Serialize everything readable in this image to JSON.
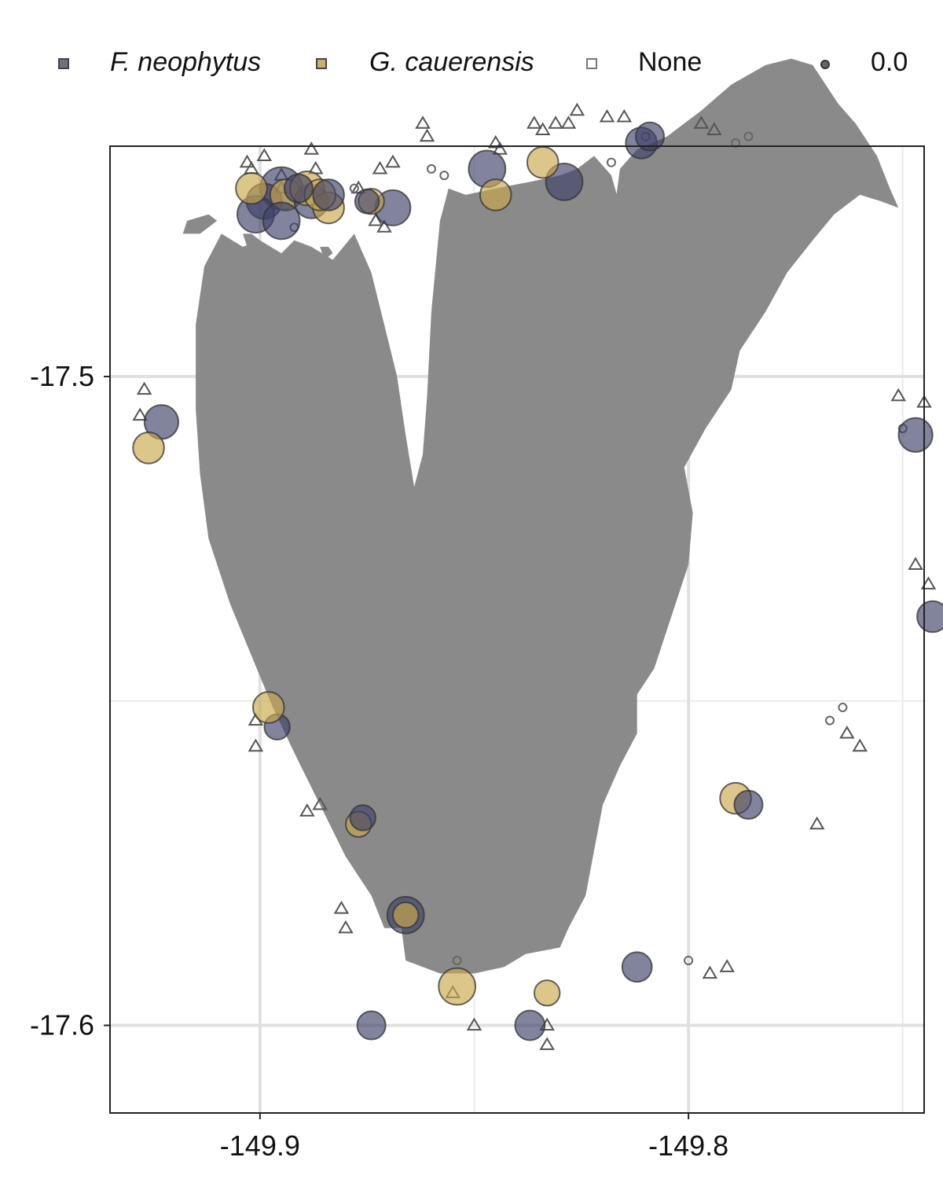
{
  "legend": {
    "items": [
      {
        "label": "F. neophytus",
        "italic": true,
        "color": "#3f4168"
      },
      {
        "label": "G. cauerensis",
        "italic": true,
        "color": "#c9a84b"
      },
      {
        "label": "None",
        "italic": false,
        "color": "#ffffff"
      }
    ],
    "size_label": "0.0"
  },
  "chart_data": {
    "type": "map",
    "xlim": [
      -149.935,
      -149.745
    ],
    "ylim": [
      -17.6135,
      -17.4645
    ],
    "x_ticks": [
      -149.9,
      -149.8
    ],
    "y_ticks": [
      -17.5,
      -17.6
    ],
    "x_tick_labels": [
      "-149.9",
      "-149.8"
    ],
    "y_tick_labels": [
      "-17.5",
      "-17.6"
    ],
    "minor_x_ticks": [
      -149.85,
      -149.75
    ],
    "minor_y_ticks": [
      -17.55
    ],
    "grid": true,
    "legend_position": "top",
    "land_color": "#8a8a8a",
    "colors": {
      "F. neophytus": "#3f4168",
      "G. cauerensis": "#c9a84b",
      "None": "#555555"
    },
    "island_outline": [
      [
        -149.878,
        -17.478
      ],
      [
        -149.883,
        -17.482
      ],
      [
        -149.888,
        -17.48
      ],
      [
        -149.892,
        -17.479
      ],
      [
        -149.895,
        -17.481
      ],
      [
        -149.9,
        -17.479
      ],
      [
        -149.904,
        -17.48
      ],
      [
        -149.909,
        -17.478
      ],
      [
        -149.913,
        -17.483
      ],
      [
        -149.915,
        -17.492
      ],
      [
        -149.915,
        -17.505
      ],
      [
        -149.914,
        -17.515
      ],
      [
        -149.912,
        -17.525
      ],
      [
        -149.907,
        -17.535
      ],
      [
        -149.902,
        -17.543
      ],
      [
        -149.897,
        -17.551
      ],
      [
        -149.892,
        -17.558
      ],
      [
        -149.886,
        -17.566
      ],
      [
        -149.88,
        -17.574
      ],
      [
        -149.874,
        -17.58
      ],
      [
        -149.871,
        -17.585
      ],
      [
        -149.867,
        -17.585
      ],
      [
        -149.866,
        -17.59
      ],
      [
        -149.858,
        -17.592
      ],
      [
        -149.85,
        -17.592
      ],
      [
        -149.843,
        -17.591
      ],
      [
        -149.838,
        -17.589
      ],
      [
        -149.83,
        -17.588
      ],
      [
        -149.828,
        -17.585
      ],
      [
        -149.824,
        -17.58
      ],
      [
        -149.822,
        -17.573
      ],
      [
        -149.82,
        -17.566
      ],
      [
        -149.816,
        -17.56
      ],
      [
        -149.812,
        -17.555
      ],
      [
        -149.812,
        -17.549
      ],
      [
        -149.808,
        -17.545
      ],
      [
        -149.804,
        -17.537
      ],
      [
        -149.8,
        -17.529
      ],
      [
        -149.799,
        -17.521
      ],
      [
        -149.801,
        -17.514
      ],
      [
        -149.796,
        -17.508
      ],
      [
        -149.79,
        -17.502
      ],
      [
        -149.788,
        -17.496
      ],
      [
        -149.782,
        -17.49
      ],
      [
        -149.777,
        -17.484
      ],
      [
        -149.771,
        -17.479
      ],
      [
        -149.766,
        -17.475
      ],
      [
        -149.76,
        -17.472
      ],
      [
        -149.755,
        -17.473
      ],
      [
        -149.751,
        -17.474
      ],
      [
        -149.753,
        -17.471
      ],
      [
        -149.756,
        -17.466
      ],
      [
        -149.761,
        -17.461
      ],
      [
        -149.765,
        -17.458
      ],
      [
        -149.768,
        -17.455
      ],
      [
        -149.771,
        -17.452
      ],
      [
        -149.776,
        -17.451
      ],
      [
        -149.782,
        -17.452
      ],
      [
        -149.79,
        -17.455
      ],
      [
        -149.797,
        -17.459
      ],
      [
        -149.805,
        -17.463
      ],
      [
        -149.812,
        -17.465
      ],
      [
        -149.816,
        -17.468
      ],
      [
        -149.817,
        -17.473
      ],
      [
        -149.818,
        -17.483
      ],
      [
        -149.817,
        -17.496
      ],
      [
        -149.815,
        -17.506
      ],
      [
        -149.813,
        -17.511
      ],
      [
        -149.811,
        -17.509
      ],
      [
        -149.812,
        -17.502
      ],
      [
        -149.814,
        -17.488
      ],
      [
        -149.815,
        -17.476
      ],
      [
        -149.818,
        -17.469
      ],
      [
        -149.822,
        -17.466
      ],
      [
        -149.826,
        -17.468
      ],
      [
        -149.83,
        -17.469
      ],
      [
        -149.837,
        -17.47
      ],
      [
        -149.845,
        -17.471
      ],
      [
        -149.852,
        -17.472
      ],
      [
        -149.856,
        -17.471
      ],
      [
        -149.858,
        -17.476
      ],
      [
        -149.86,
        -17.49
      ],
      [
        -149.861,
        -17.503
      ],
      [
        -149.862,
        -17.512
      ],
      [
        -149.864,
        -17.517
      ],
      [
        -149.866,
        -17.509
      ],
      [
        -149.868,
        -17.5
      ],
      [
        -149.871,
        -17.492
      ],
      [
        -149.874,
        -17.484
      ]
    ],
    "islets": [
      [
        [
          -149.904,
          -17.478
        ],
        [
          -149.902,
          -17.478
        ],
        [
          -149.9,
          -17.479
        ],
        [
          -149.903,
          -17.48
        ]
      ],
      [
        [
          -149.886,
          -17.48
        ],
        [
          -149.884,
          -17.48
        ],
        [
          -149.883,
          -17.481
        ],
        [
          -149.885,
          -17.482
        ]
      ],
      [
        [
          -149.917,
          -17.476
        ],
        [
          -149.912,
          -17.475
        ],
        [
          -149.91,
          -17.476
        ],
        [
          -149.914,
          -17.478
        ],
        [
          -149.918,
          -17.478
        ]
      ]
    ],
    "occurrences": [
      {
        "species": "F. neophytus",
        "x": -149.895,
        "y": -17.471,
        "size": 3.0
      },
      {
        "species": "F. neophytus",
        "x": -149.899,
        "y": -17.473,
        "size": 2.5
      },
      {
        "species": "F. neophytus",
        "x": -149.901,
        "y": -17.475,
        "size": 2.6
      },
      {
        "species": "G. cauerensis",
        "x": -149.902,
        "y": -17.471,
        "size": 2.2
      },
      {
        "species": "G. cauerensis",
        "x": -149.894,
        "y": -17.472,
        "size": 2.2
      },
      {
        "species": "F. neophytus",
        "x": -149.888,
        "y": -17.473,
        "size": 2.4
      },
      {
        "species": "G. cauerensis",
        "x": -149.889,
        "y": -17.471,
        "size": 2.4
      },
      {
        "species": "G. cauerensis",
        "x": -149.884,
        "y": -17.474,
        "size": 2.2
      },
      {
        "species": "G. cauerensis",
        "x": -149.886,
        "y": -17.472,
        "size": 2.2
      },
      {
        "species": "F. neophytus",
        "x": -149.884,
        "y": -17.472,
        "size": 2.2
      },
      {
        "species": "F. neophytus",
        "x": -149.895,
        "y": -17.476,
        "size": 2.6
      },
      {
        "species": "F. neophytus",
        "x": -149.891,
        "y": -17.471,
        "size": 2.0
      },
      {
        "species": "F. neophytus",
        "x": -149.869,
        "y": -17.474,
        "size": 2.5
      },
      {
        "species": "G. cauerensis",
        "x": -149.874,
        "y": -17.473,
        "size": 1.8
      },
      {
        "species": "F. neophytus",
        "x": -149.875,
        "y": -17.473,
        "size": 1.7
      },
      {
        "species": "F. neophytus",
        "x": -149.847,
        "y": -17.468,
        "size": 2.6
      },
      {
        "species": "G. cauerensis",
        "x": -149.845,
        "y": -17.472,
        "size": 2.2
      },
      {
        "species": "F. neophytus",
        "x": -149.829,
        "y": -17.47,
        "size": 2.6
      },
      {
        "species": "G. cauerensis",
        "x": -149.834,
        "y": -17.467,
        "size": 2.2
      },
      {
        "species": "F. neophytus",
        "x": -149.811,
        "y": -17.464,
        "size": 2.2
      },
      {
        "species": "F. neophytus",
        "x": -149.809,
        "y": -17.463,
        "size": 2.0
      },
      {
        "species": "F. neophytus",
        "x": -149.923,
        "y": -17.507,
        "size": 2.4
      },
      {
        "species": "G. cauerensis",
        "x": -149.926,
        "y": -17.511,
        "size": 2.2
      },
      {
        "species": "F. neophytus",
        "x": -149.747,
        "y": -17.509,
        "size": 2.4
      },
      {
        "species": "F. neophytus",
        "x": -149.743,
        "y": -17.537,
        "size": 2.2
      },
      {
        "species": "F. neophytus",
        "x": -149.896,
        "y": -17.554,
        "size": 1.8
      },
      {
        "species": "G. cauerensis",
        "x": -149.898,
        "y": -17.551,
        "size": 2.2
      },
      {
        "species": "F. neophytus",
        "x": -149.874,
        "y": -17.6,
        "size": 2.0
      },
      {
        "species": "G. cauerensis",
        "x": -149.877,
        "y": -17.569,
        "size": 1.8
      },
      {
        "species": "F. neophytus",
        "x": -149.876,
        "y": -17.568,
        "size": 1.8
      },
      {
        "species": "F. neophytus",
        "x": -149.866,
        "y": -17.583,
        "size": 2.6
      },
      {
        "species": "G. cauerensis",
        "x": -149.866,
        "y": -17.583,
        "size": 1.8
      },
      {
        "species": "G. cauerensis",
        "x": -149.854,
        "y": -17.594,
        "size": 2.6
      },
      {
        "species": "G. cauerensis",
        "x": -149.833,
        "y": -17.595,
        "size": 1.8
      },
      {
        "species": "F. neophytus",
        "x": -149.837,
        "y": -17.6,
        "size": 2.1
      },
      {
        "species": "F. neophytus",
        "x": -149.812,
        "y": -17.591,
        "size": 2.1
      },
      {
        "species": "G. cauerensis",
        "x": -149.789,
        "y": -17.565,
        "size": 2.2
      },
      {
        "species": "F. neophytus",
        "x": -149.786,
        "y": -17.566,
        "size": 2.0
      }
    ],
    "zero_points": [
      {
        "x": -149.892,
        "y": -17.477
      },
      {
        "x": -149.878,
        "y": -17.471
      },
      {
        "x": -149.86,
        "y": -17.468
      },
      {
        "x": -149.857,
        "y": -17.469
      },
      {
        "x": -149.818,
        "y": -17.467
      },
      {
        "x": -149.81,
        "y": -17.463
      },
      {
        "x": -149.789,
        "y": -17.464
      },
      {
        "x": -149.786,
        "y": -17.463
      },
      {
        "x": -149.75,
        "y": -17.508
      },
      {
        "x": -149.739,
        "y": -17.534
      },
      {
        "x": -149.764,
        "y": -17.551
      },
      {
        "x": -149.767,
        "y": -17.553
      },
      {
        "x": -149.854,
        "y": -17.59
      },
      {
        "x": -149.8,
        "y": -17.59
      }
    ],
    "none_points": [
      {
        "x": -149.927,
        "y": -17.502
      },
      {
        "x": -149.928,
        "y": -17.506
      },
      {
        "x": -149.903,
        "y": -17.467
      },
      {
        "x": -149.899,
        "y": -17.466
      },
      {
        "x": -149.895,
        "y": -17.469
      },
      {
        "x": -149.902,
        "y": -17.468
      },
      {
        "x": -149.895,
        "y": -17.471
      },
      {
        "x": -149.888,
        "y": -17.465
      },
      {
        "x": -149.887,
        "y": -17.468
      },
      {
        "x": -149.877,
        "y": -17.471
      },
      {
        "x": -149.872,
        "y": -17.468
      },
      {
        "x": -149.869,
        "y": -17.467
      },
      {
        "x": -149.873,
        "y": -17.476
      },
      {
        "x": -149.871,
        "y": -17.477
      },
      {
        "x": -149.862,
        "y": -17.461
      },
      {
        "x": -149.861,
        "y": -17.463
      },
      {
        "x": -149.845,
        "y": -17.464
      },
      {
        "x": -149.844,
        "y": -17.465
      },
      {
        "x": -149.836,
        "y": -17.461
      },
      {
        "x": -149.834,
        "y": -17.462
      },
      {
        "x": -149.831,
        "y": -17.461
      },
      {
        "x": -149.828,
        "y": -17.461
      },
      {
        "x": -149.826,
        "y": -17.459
      },
      {
        "x": -149.819,
        "y": -17.46
      },
      {
        "x": -149.815,
        "y": -17.46
      },
      {
        "x": -149.797,
        "y": -17.461
      },
      {
        "x": -149.794,
        "y": -17.462
      },
      {
        "x": -149.751,
        "y": -17.503
      },
      {
        "x": -149.745,
        "y": -17.504
      },
      {
        "x": -149.747,
        "y": -17.529
      },
      {
        "x": -149.744,
        "y": -17.532
      },
      {
        "x": -149.763,
        "y": -17.555
      },
      {
        "x": -149.76,
        "y": -17.557
      },
      {
        "x": -149.77,
        "y": -17.569
      },
      {
        "x": -149.901,
        "y": -17.553
      },
      {
        "x": -149.901,
        "y": -17.557
      },
      {
        "x": -149.889,
        "y": -17.567
      },
      {
        "x": -149.886,
        "y": -17.566
      },
      {
        "x": -149.881,
        "y": -17.582
      },
      {
        "x": -149.88,
        "y": -17.585
      },
      {
        "x": -149.855,
        "y": -17.595
      },
      {
        "x": -149.85,
        "y": -17.6
      },
      {
        "x": -149.833,
        "y": -17.6
      },
      {
        "x": -149.833,
        "y": -17.603
      },
      {
        "x": -149.795,
        "y": -17.592
      },
      {
        "x": -149.791,
        "y": -17.591
      }
    ]
  }
}
